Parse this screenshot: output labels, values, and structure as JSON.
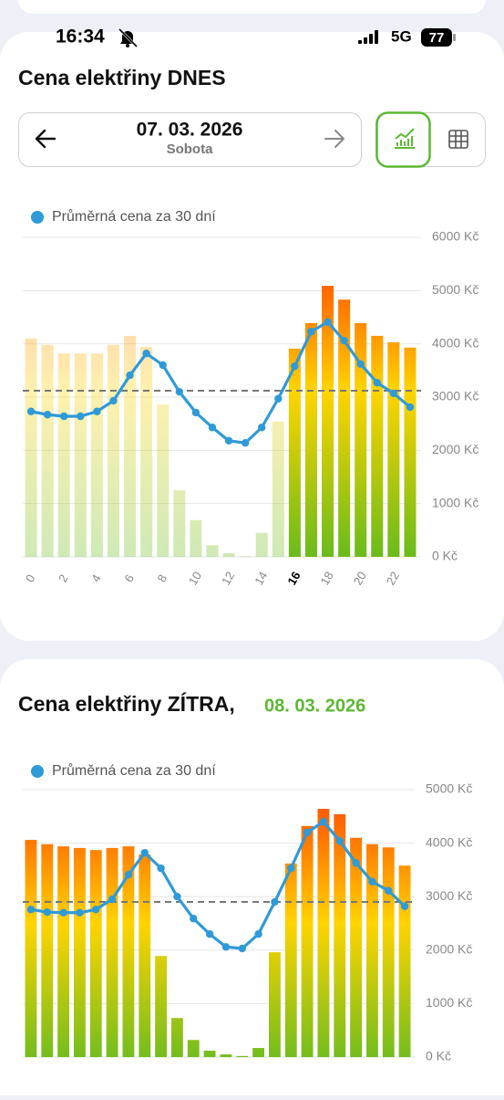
{
  "status_bar": {
    "time": "16:34",
    "network": "5G",
    "battery": "77"
  },
  "today_card": {
    "title": "Cena elektřiny DNES",
    "date": "07. 03. 2026",
    "weekday": "Sobota"
  },
  "tomorrow_card": {
    "title": "Cena elektřiny ZÍTRA,",
    "date": "08. 03. 2026"
  },
  "chart_data": [
    {
      "type": "bar",
      "categories": [
        0,
        null,
        2,
        null,
        4,
        null,
        6,
        null,
        8,
        null,
        10,
        null,
        12,
        null,
        14,
        null,
        16,
        null,
        18,
        null,
        20,
        null,
        22,
        null
      ],
      "values": [
        4100,
        3980,
        3820,
        3820,
        3820,
        3980,
        4150,
        3940,
        2860,
        1250,
        690,
        220,
        70,
        10,
        450,
        2540,
        3910,
        4390,
        5090,
        4830,
        4390,
        4150,
        4030,
        3930
      ],
      "current": 16,
      "series": [
        {
          "name": "Průměrná cena za 30 dní",
          "color": "#2f9ad8",
          "values": [
            2730,
            2670,
            2640,
            2640,
            2730,
            2930,
            3410,
            3820,
            3600,
            3100,
            2710,
            2430,
            2180,
            2140,
            2430,
            2970,
            3580,
            4230,
            4410,
            4060,
            3620,
            3270,
            3070,
            2810
          ]
        }
      ],
      "reference_line": 3120,
      "ylim": [
        0,
        6000
      ],
      "yticks": [
        {
          "value": 0,
          "label": "0 Kč"
        },
        {
          "value": 1000,
          "label": "1000 Kč"
        },
        {
          "value": 2000,
          "label": "2000 Kč"
        },
        {
          "value": 3000,
          "label": "3000 Kč"
        },
        {
          "value": 4000,
          "label": "4000 Kč"
        },
        {
          "value": 5000,
          "label": "5000 Kč"
        },
        {
          "value": 6000,
          "label": "6000 Kč"
        }
      ],
      "grid": true
    },
    {
      "type": "bar",
      "values": [
        4060,
        3980,
        3940,
        3910,
        3870,
        3910,
        3940,
        3790,
        1890,
        730,
        320,
        120,
        50,
        20,
        170,
        1960,
        3620,
        4320,
        4640,
        4540,
        4100,
        3980,
        3920,
        3580
      ],
      "series": [
        {
          "name": "Průměrná cena za 30 dní",
          "color": "#2f9ad8",
          "values": [
            2760,
            2710,
            2700,
            2700,
            2760,
            2950,
            3410,
            3820,
            3530,
            3000,
            2590,
            2300,
            2060,
            2030,
            2300,
            2900,
            3530,
            4200,
            4400,
            4040,
            3630,
            3280,
            3110,
            2820
          ]
        }
      ],
      "reference_line": 2900,
      "ylim": [
        0,
        5000
      ],
      "yticks": [
        {
          "value": 0,
          "label": "0 Kč"
        },
        {
          "value": 1000,
          "label": "1000 Kč"
        },
        {
          "value": 2000,
          "label": "2000 Kč"
        },
        {
          "value": 3000,
          "label": "3000 Kč"
        },
        {
          "value": 4000,
          "label": "4000 Kč"
        },
        {
          "value": 5000,
          "label": "5000 Kč"
        }
      ],
      "grid": true
    }
  ]
}
